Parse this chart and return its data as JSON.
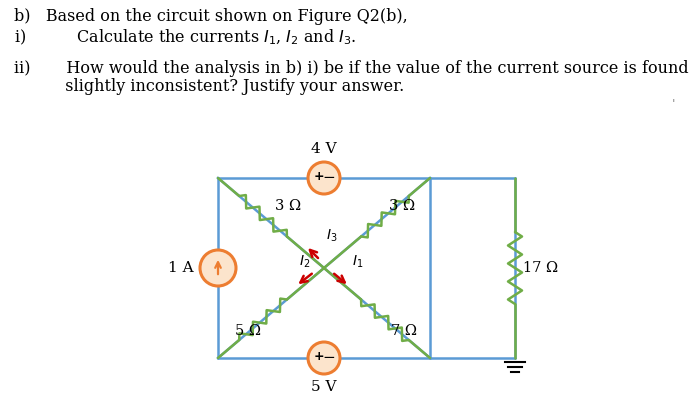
{
  "bg_color": "#ffffff",
  "circuit_color": "#5b9bd5",
  "resistor_color": "#70ad47",
  "source_color": "#ed7d31",
  "arrow_color": "#cc0000",
  "text_color": "#000000",
  "label_4V": "4 V",
  "label_5V": "5 V",
  "label_1A": "1 A",
  "label_3ohm_left": "3 Ω",
  "label_3ohm_right": "3 Ω",
  "label_5ohm": "5 Ω",
  "label_7ohm": "7 Ω",
  "label_17ohm": "17 Ω",
  "label_I1": "$I_1$",
  "label_I2": "$I_2$",
  "label_I3": "$I_3$",
  "line_b": "b)   Based on the circuit shown on Figure Q2(b),",
  "line_i": "i)          Calculate the currents $I_1$, $I_2$ and $I_3$.",
  "line_ii_1": "ii)       How would the analysis in b) i) be if the value of the current source is found to be",
  "line_ii_2": "          slightly inconsistent? Justify your answer.",
  "fig_size": [
    6.94,
    4.18
  ],
  "dpi": 100
}
